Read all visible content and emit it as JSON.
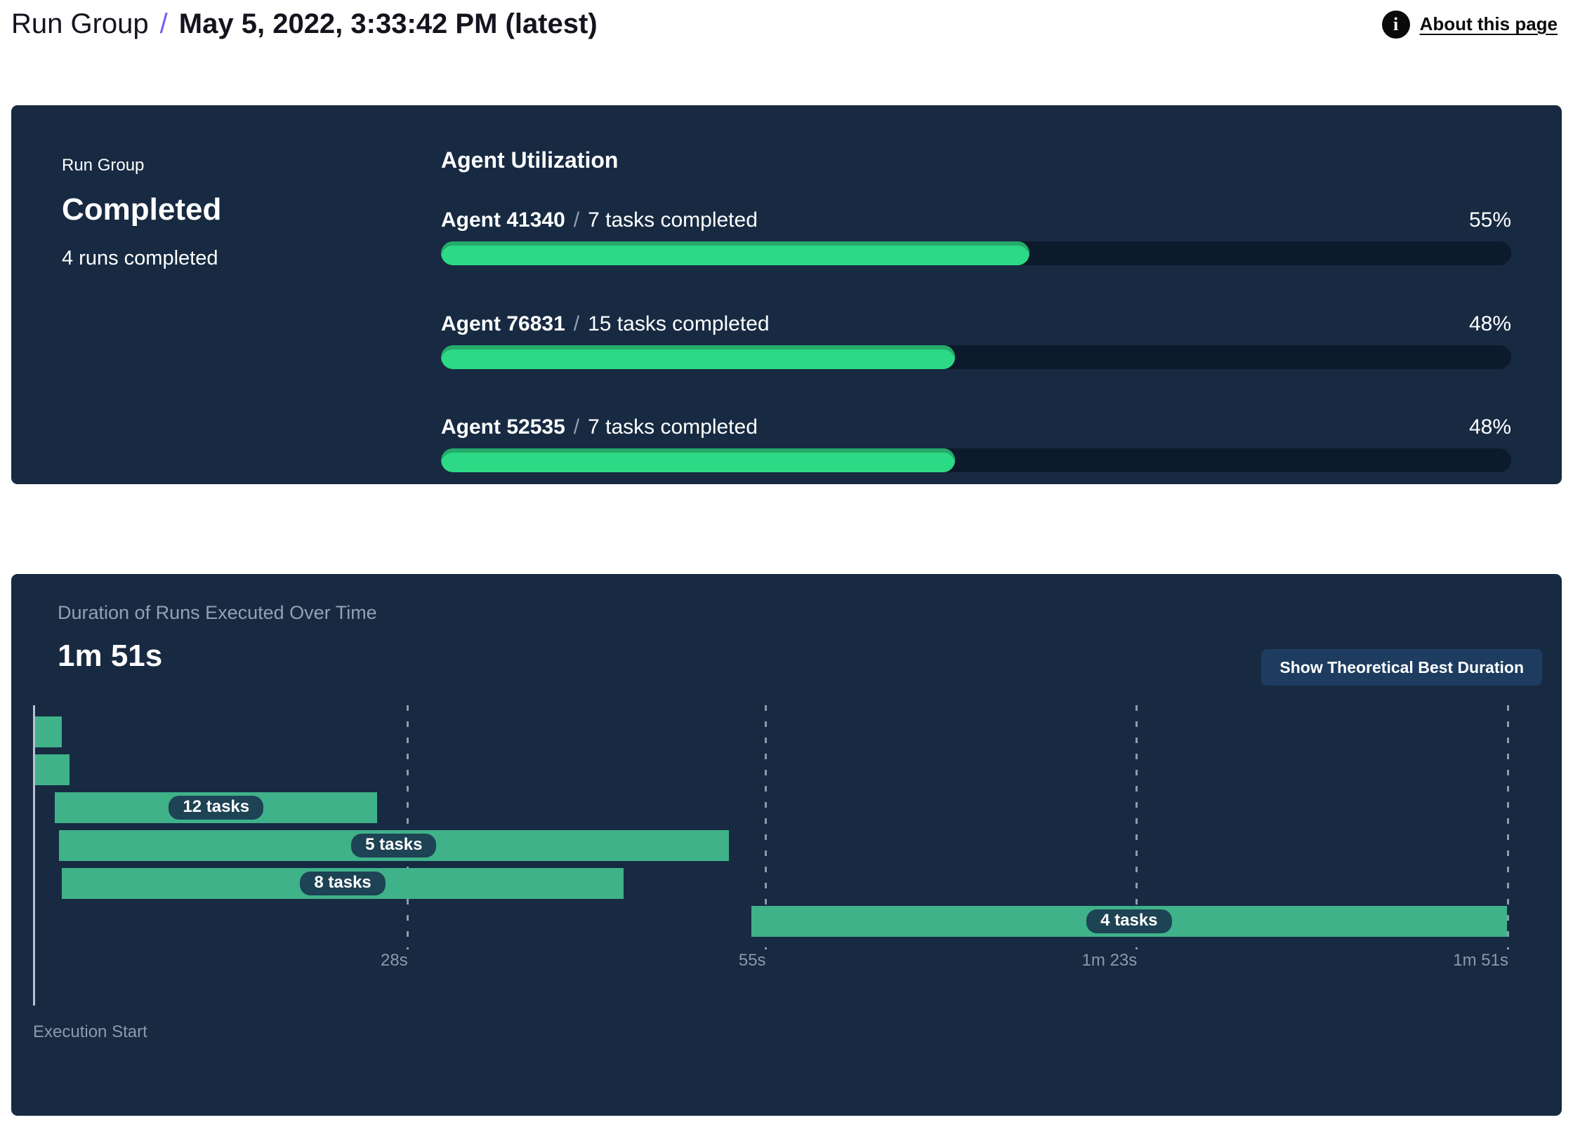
{
  "header": {
    "breadcrumb_root": "Run Group",
    "separator": "/",
    "title": "May 5, 2022, 3:33:42 PM (latest)",
    "about_link": "About this page",
    "info_icon": "info-icon"
  },
  "colors": {
    "purple": "#7a5af8",
    "panel": "#172a42",
    "track": "#0c1a2b",
    "green-bright": "#2cda86",
    "green-shade": "#25aa6b",
    "green-gantt": "#3fb28a",
    "pill": "#1d4354",
    "button": "#1d3c5f",
    "slate": "#94a0b4",
    "slate-dim": "#8c99ad",
    "axis": "#b8c1cf"
  },
  "summary_panel": {
    "group_label": "Run Group",
    "status": "Completed",
    "runs_completed": "4 runs completed",
    "section_title": "Agent Utilization",
    "agents": [
      {
        "name": "Agent 41340",
        "separator": "/",
        "tasks": "7 tasks completed",
        "percent_label": "55%",
        "utilization_pct": 55
      },
      {
        "name": "Agent 76831",
        "separator": "/",
        "tasks": "15 tasks completed",
        "percent_label": "48%",
        "utilization_pct": 48
      },
      {
        "name": "Agent 52535",
        "separator": "/",
        "tasks": "7 tasks completed",
        "percent_label": "48%",
        "utilization_pct": 48
      }
    ]
  },
  "duration_panel": {
    "subtitle": "Duration of Runs Executed Over Time",
    "total_duration": "1m 51s",
    "button_label": "Show Theoretical Best Duration",
    "axis_label": "Execution Start"
  },
  "chart_data": {
    "type": "gantt",
    "title": "Duration of Runs Executed Over Time",
    "total_duration_label": "1m 51s",
    "total_duration_s": 111,
    "xlabel": "Execution Start",
    "x_ticks": [
      {
        "time_s": 28,
        "label": "28s"
      },
      {
        "time_s": 55,
        "label": "55s"
      },
      {
        "time_s": 83,
        "label": "1m 23s"
      },
      {
        "time_s": 111,
        "label": "1m 51s"
      }
    ],
    "bars": [
      {
        "start_s": 0.0,
        "end_s": 2.0,
        "label": ""
      },
      {
        "start_s": 0.0,
        "end_s": 2.6,
        "label": ""
      },
      {
        "start_s": 1.5,
        "end_s": 25.8,
        "label": "12 tasks"
      },
      {
        "start_s": 1.8,
        "end_s": 52.3,
        "label": "5 tasks"
      },
      {
        "start_s": 2.0,
        "end_s": 44.4,
        "label": "8 tasks"
      },
      {
        "start_s": 54.0,
        "end_s": 111.0,
        "label": "4 tasks"
      }
    ]
  }
}
